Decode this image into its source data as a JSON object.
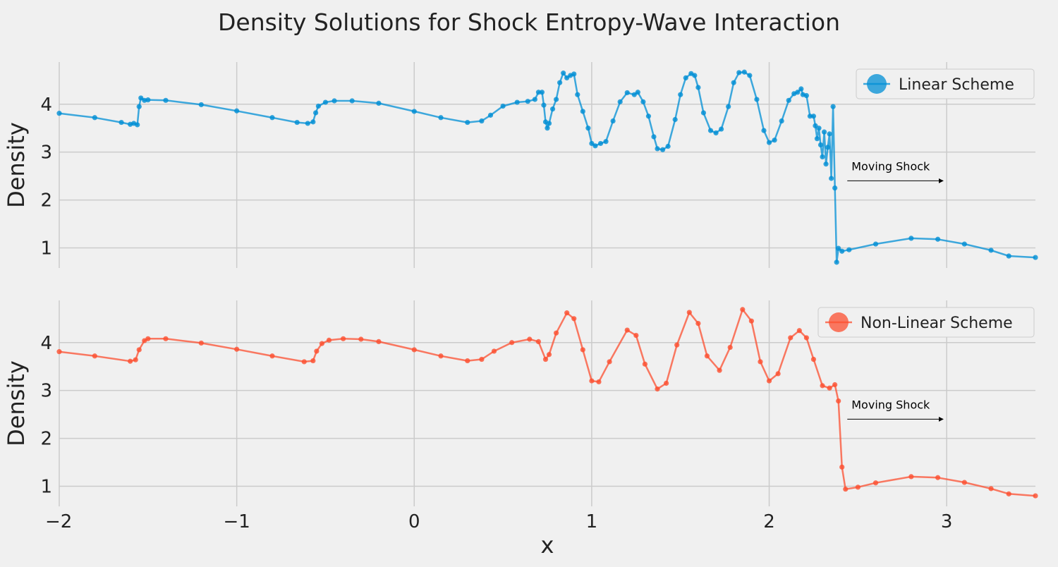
{
  "figure": {
    "title": "Density Solutions for Shock Entropy-Wave Interaction",
    "background": "#f0f0f0",
    "grid_color": "#cbcbcb"
  },
  "chart_data": [
    {
      "type": "line",
      "marker": "circle",
      "xlabel": "",
      "ylabel": "Density",
      "xlim": [
        -2,
        3.5
      ],
      "ylim": [
        0.58,
        4.88
      ],
      "xticks": [
        -2,
        -1,
        0,
        1,
        2,
        3
      ],
      "xtick_labels": [
        "−2",
        "−1",
        "0",
        "1",
        "2",
        "3"
      ],
      "show_xtick_labels": false,
      "yticks": [
        1,
        2,
        3,
        4
      ],
      "ytick_labels": [
        "1",
        "2",
        "3",
        "4"
      ],
      "grid": true,
      "legend": "top-right",
      "series": [
        {
          "name": "Linear Scheme",
          "color": "#008fd5",
          "points": [
            [
              -2.0,
              3.81
            ],
            [
              -1.8,
              3.72
            ],
            [
              -1.65,
              3.62
            ],
            [
              -1.6,
              3.58
            ],
            [
              -1.58,
              3.6
            ],
            [
              -1.56,
              3.57
            ],
            [
              -1.55,
              3.95
            ],
            [
              -1.54,
              4.13
            ],
            [
              -1.52,
              4.08
            ],
            [
              -1.5,
              4.09
            ],
            [
              -1.4,
              4.08
            ],
            [
              -1.2,
              3.99
            ],
            [
              -1.0,
              3.86
            ],
            [
              -0.8,
              3.72
            ],
            [
              -0.66,
              3.62
            ],
            [
              -0.6,
              3.6
            ],
            [
              -0.57,
              3.63
            ],
            [
              -0.555,
              3.82
            ],
            [
              -0.54,
              3.96
            ],
            [
              -0.5,
              4.04
            ],
            [
              -0.45,
              4.07
            ],
            [
              -0.35,
              4.07
            ],
            [
              -0.2,
              4.02
            ],
            [
              0.0,
              3.85
            ],
            [
              0.15,
              3.72
            ],
            [
              0.3,
              3.62
            ],
            [
              0.38,
              3.65
            ],
            [
              0.43,
              3.77
            ],
            [
              0.5,
              3.96
            ],
            [
              0.58,
              4.04
            ],
            [
              0.64,
              4.06
            ],
            [
              0.68,
              4.1
            ],
            [
              0.7,
              4.25
            ],
            [
              0.72,
              4.25
            ],
            [
              0.73,
              3.98
            ],
            [
              0.74,
              3.63
            ],
            [
              0.75,
              3.5
            ],
            [
              0.76,
              3.6
            ],
            [
              0.78,
              3.9
            ],
            [
              0.8,
              4.1
            ],
            [
              0.82,
              4.45
            ],
            [
              0.84,
              4.65
            ],
            [
              0.86,
              4.55
            ],
            [
              0.88,
              4.6
            ],
            [
              0.9,
              4.63
            ],
            [
              0.92,
              4.2
            ],
            [
              0.95,
              3.85
            ],
            [
              0.98,
              3.5
            ],
            [
              1.0,
              3.18
            ],
            [
              1.02,
              3.13
            ],
            [
              1.05,
              3.18
            ],
            [
              1.08,
              3.22
            ],
            [
              1.12,
              3.65
            ],
            [
              1.16,
              4.05
            ],
            [
              1.2,
              4.24
            ],
            [
              1.24,
              4.2
            ],
            [
              1.26,
              4.25
            ],
            [
              1.29,
              4.05
            ],
            [
              1.32,
              3.75
            ],
            [
              1.35,
              3.32
            ],
            [
              1.37,
              3.07
            ],
            [
              1.4,
              3.05
            ],
            [
              1.43,
              3.12
            ],
            [
              1.47,
              3.68
            ],
            [
              1.5,
              4.2
            ],
            [
              1.53,
              4.55
            ],
            [
              1.56,
              4.64
            ],
            [
              1.58,
              4.6
            ],
            [
              1.6,
              4.35
            ],
            [
              1.63,
              3.82
            ],
            [
              1.67,
              3.45
            ],
            [
              1.7,
              3.4
            ],
            [
              1.73,
              3.48
            ],
            [
              1.77,
              3.95
            ],
            [
              1.8,
              4.45
            ],
            [
              1.83,
              4.66
            ],
            [
              1.86,
              4.67
            ],
            [
              1.89,
              4.6
            ],
            [
              1.93,
              4.1
            ],
            [
              1.97,
              3.45
            ],
            [
              2.0,
              3.2
            ],
            [
              2.03,
              3.25
            ],
            [
              2.07,
              3.65
            ],
            [
              2.11,
              4.08
            ],
            [
              2.14,
              4.22
            ],
            [
              2.16,
              4.25
            ],
            [
              2.18,
              4.32
            ],
            [
              2.19,
              4.2
            ],
            [
              2.21,
              4.18
            ],
            [
              2.23,
              3.75
            ],
            [
              2.25,
              3.75
            ],
            [
              2.26,
              3.55
            ],
            [
              2.27,
              3.28
            ],
            [
              2.28,
              3.5
            ],
            [
              2.29,
              3.15
            ],
            [
              2.3,
              2.9
            ],
            [
              2.31,
              3.42
            ],
            [
              2.32,
              2.75
            ],
            [
              2.33,
              3.1
            ],
            [
              2.34,
              3.38
            ],
            [
              2.35,
              2.45
            ],
            [
              2.36,
              3.95
            ],
            [
              2.37,
              2.25
            ],
            [
              2.38,
              0.7
            ],
            [
              2.39,
              0.99
            ],
            [
              2.41,
              0.93
            ],
            [
              2.45,
              0.96
            ],
            [
              2.6,
              1.08
            ],
            [
              2.8,
              1.2
            ],
            [
              2.95,
              1.18
            ],
            [
              3.1,
              1.08
            ],
            [
              3.25,
              0.95
            ],
            [
              3.35,
              0.83
            ],
            [
              3.5,
              0.8
            ]
          ]
        }
      ],
      "annotation": {
        "text": "Moving Shock",
        "from": [
          2.44,
          2.4
        ],
        "to": [
          2.98,
          2.4
        ]
      }
    },
    {
      "type": "line",
      "marker": "circle",
      "xlabel": "x",
      "ylabel": "Density",
      "xlim": [
        -2,
        3.5
      ],
      "ylim": [
        0.58,
        4.88
      ],
      "xticks": [
        -2,
        -1,
        0,
        1,
        2,
        3
      ],
      "xtick_labels": [
        "−2",
        "−1",
        "0",
        "1",
        "2",
        "3"
      ],
      "show_xtick_labels": true,
      "yticks": [
        1,
        2,
        3,
        4
      ],
      "ytick_labels": [
        "1",
        "2",
        "3",
        "4"
      ],
      "grid": true,
      "legend": "top-right",
      "series": [
        {
          "name": "Non-Linear Scheme",
          "color": "#fc4f30",
          "points": [
            [
              -2.0,
              3.81
            ],
            [
              -1.8,
              3.72
            ],
            [
              -1.6,
              3.61
            ],
            [
              -1.57,
              3.64
            ],
            [
              -1.55,
              3.85
            ],
            [
              -1.52,
              4.04
            ],
            [
              -1.5,
              4.08
            ],
            [
              -1.4,
              4.08
            ],
            [
              -1.2,
              3.99
            ],
            [
              -1.0,
              3.86
            ],
            [
              -0.8,
              3.72
            ],
            [
              -0.62,
              3.6
            ],
            [
              -0.57,
              3.62
            ],
            [
              -0.55,
              3.82
            ],
            [
              -0.52,
              3.98
            ],
            [
              -0.48,
              4.05
            ],
            [
              -0.4,
              4.08
            ],
            [
              -0.3,
              4.07
            ],
            [
              -0.2,
              4.02
            ],
            [
              0.0,
              3.85
            ],
            [
              0.15,
              3.72
            ],
            [
              0.3,
              3.62
            ],
            [
              0.38,
              3.65
            ],
            [
              0.45,
              3.82
            ],
            [
              0.55,
              4.0
            ],
            [
              0.65,
              4.07
            ],
            [
              0.7,
              4.02
            ],
            [
              0.74,
              3.65
            ],
            [
              0.76,
              3.75
            ],
            [
              0.8,
              4.2
            ],
            [
              0.86,
              4.62
            ],
            [
              0.9,
              4.5
            ],
            [
              0.95,
              3.85
            ],
            [
              1.0,
              3.2
            ],
            [
              1.04,
              3.18
            ],
            [
              1.1,
              3.6
            ],
            [
              1.2,
              4.26
            ],
            [
              1.25,
              4.15
            ],
            [
              1.3,
              3.55
            ],
            [
              1.37,
              3.03
            ],
            [
              1.42,
              3.15
            ],
            [
              1.48,
              3.95
            ],
            [
              1.55,
              4.63
            ],
            [
              1.6,
              4.4
            ],
            [
              1.65,
              3.72
            ],
            [
              1.72,
              3.42
            ],
            [
              1.78,
              3.9
            ],
            [
              1.85,
              4.69
            ],
            [
              1.9,
              4.45
            ],
            [
              1.95,
              3.6
            ],
            [
              2.0,
              3.2
            ],
            [
              2.05,
              3.35
            ],
            [
              2.12,
              4.1
            ],
            [
              2.17,
              4.25
            ],
            [
              2.21,
              4.1
            ],
            [
              2.25,
              3.65
            ],
            [
              2.3,
              3.1
            ],
            [
              2.34,
              3.05
            ],
            [
              2.37,
              3.12
            ],
            [
              2.39,
              2.78
            ],
            [
              2.41,
              1.4
            ],
            [
              2.43,
              0.94
            ],
            [
              2.5,
              0.98
            ],
            [
              2.6,
              1.07
            ],
            [
              2.8,
              1.2
            ],
            [
              2.95,
              1.18
            ],
            [
              3.1,
              1.08
            ],
            [
              3.25,
              0.95
            ],
            [
              3.35,
              0.84
            ],
            [
              3.5,
              0.8
            ]
          ]
        }
      ],
      "annotation": {
        "text": "Moving Shock",
        "from": [
          2.44,
          2.4
        ],
        "to": [
          2.98,
          2.4
        ]
      }
    }
  ]
}
